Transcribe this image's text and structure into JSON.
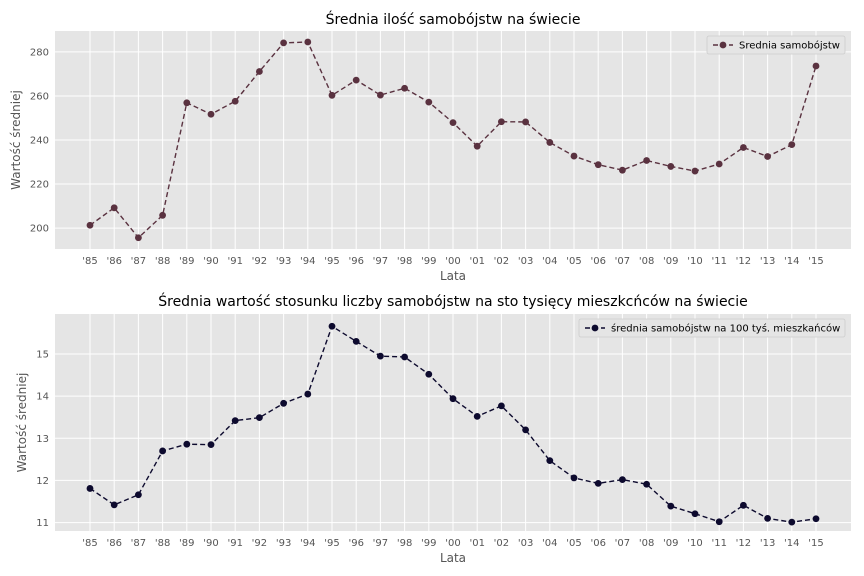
{
  "chart_data": [
    {
      "type": "line",
      "title": "Średnia ilość samobójstw na świecie",
      "xlabel": "Lata",
      "ylabel": "Wartość średniej",
      "categories": [
        "'85",
        "'86",
        "'87",
        "'88",
        "'89",
        "'90",
        "'91",
        "'92",
        "'93",
        "'94",
        "'95",
        "'96",
        "'97",
        "'98",
        "'99",
        "'00",
        "'01",
        "'02",
        "'03",
        "'04",
        "'05",
        "'06",
        "'07",
        "'08",
        "'09",
        "'10",
        "'11",
        "'12",
        "'13",
        "'14",
        "'15"
      ],
      "yticks": [
        200,
        220,
        240,
        260,
        280
      ],
      "ylim": [
        190.5,
        289.5
      ],
      "grid": true,
      "legend_position": "top-right",
      "line_style": "dashed",
      "marker": "circle",
      "series": [
        {
          "name": "Srednia samobójstw",
          "color": "#5a3240",
          "values": [
            201.3,
            209.2,
            195.6,
            205.8,
            256.9,
            251.7,
            257.6,
            271.1,
            284.1,
            284.5,
            260.3,
            267.2,
            260.4,
            263.5,
            257.2,
            247.9,
            237.2,
            248.3,
            248.2,
            238.9,
            232.7,
            228.8,
            226.3,
            230.7,
            228.0,
            225.9,
            229.1,
            236.6,
            232.5,
            237.9,
            273.6
          ]
        }
      ]
    },
    {
      "type": "line",
      "title": "Średnia wartość stosunku liczby samobójstw na sto tysięcy mieszkcńców na świecie",
      "xlabel": "Lata",
      "ylabel": "Wartość średniej",
      "categories": [
        "'85",
        "'86",
        "'87",
        "'88",
        "'89",
        "'90",
        "'91",
        "'92",
        "'93",
        "'94",
        "'95",
        "'96",
        "'97",
        "'98",
        "'99",
        "'00",
        "'01",
        "'02",
        "'03",
        "'04",
        "'05",
        "'06",
        "'07",
        "'08",
        "'09",
        "'10",
        "'11",
        "'12",
        "'13",
        "'14",
        "'15"
      ],
      "yticks": [
        11,
        12,
        13,
        14,
        15
      ],
      "ylim": [
        10.8,
        15.95
      ],
      "grid": true,
      "legend_position": "top-right",
      "line_style": "dashed",
      "marker": "circle",
      "series": [
        {
          "name": "średnia samobójstw na 100 tyś. mieszkańców",
          "color": "#0d0a2e",
          "values": [
            11.81,
            11.42,
            11.66,
            12.7,
            12.86,
            12.85,
            13.42,
            13.49,
            13.83,
            14.05,
            15.66,
            15.3,
            14.95,
            14.93,
            14.52,
            13.94,
            13.52,
            13.77,
            13.2,
            12.47,
            12.06,
            11.93,
            12.02,
            11.91,
            11.39,
            11.21,
            11.02,
            11.41,
            11.1,
            11.01,
            11.09
          ]
        }
      ]
    }
  ]
}
